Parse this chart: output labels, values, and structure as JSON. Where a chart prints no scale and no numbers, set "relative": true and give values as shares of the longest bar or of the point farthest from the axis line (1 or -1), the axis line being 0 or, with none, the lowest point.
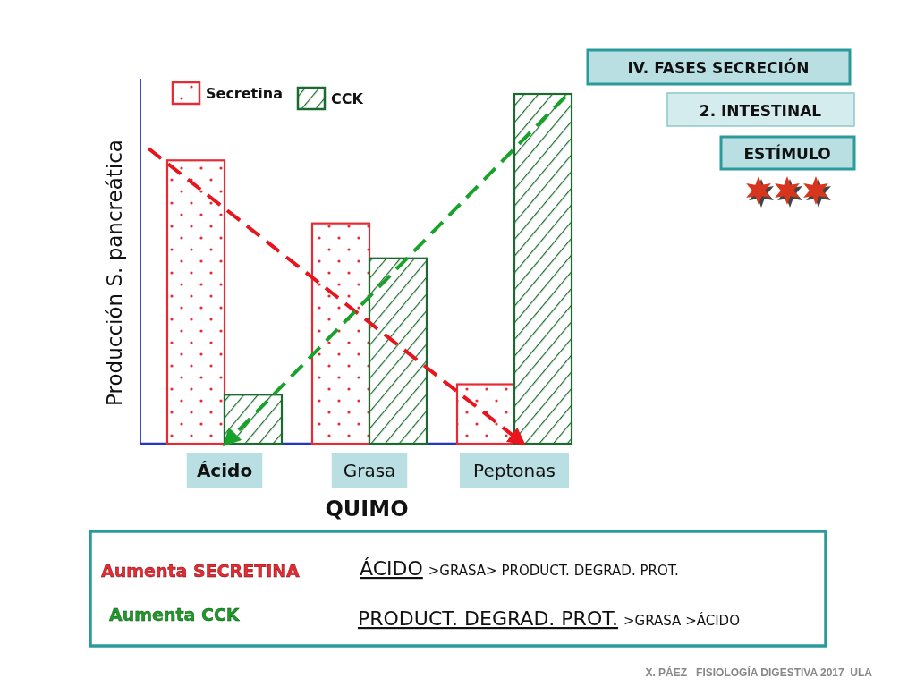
{
  "chart_data": {
    "type": "bar",
    "title": "IV. FASES SECRECIÓN",
    "subtitle": "2. INTESTINAL",
    "xlabel": "QUIMO",
    "ylabel": "Producción S. pancreática",
    "categories": [
      "Ácido",
      "Grasa",
      "Peptonas"
    ],
    "series": [
      {
        "name": "Secretina",
        "color": "#e62b35",
        "values": [
          0.81,
          0.63,
          0.17
        ]
      },
      {
        "name": "CCK",
        "color": "#1b6b2e",
        "values": [
          0.14,
          0.53,
          1
        ]
      }
    ],
    "relative": true,
    "legend": "top left",
    "annotations": [
      "ESTÍMULO",
      "Aumenta SECRETINA",
      "ÁCIDO",
      ">GRASA> PRODUCT. DEGRAD. PROT.",
      "Aumenta CCK",
      "PRODUCT. DEGRAD. PROT.",
      ">GRASA >ÁCIDO",
      "X. PÁEZ   FISIOLOGÍA DIGESTIVA 2017  ULA"
    ]
  }
}
